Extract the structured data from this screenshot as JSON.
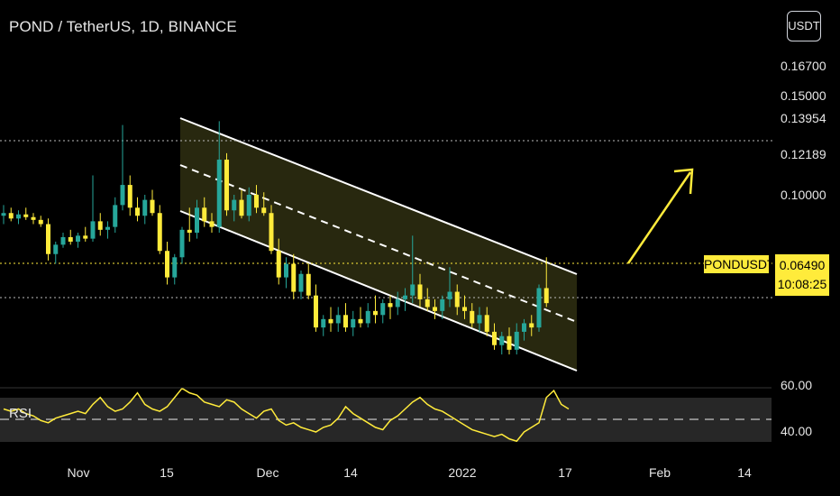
{
  "header": {
    "title": "POND / TetherUS, 1D, BINANCE"
  },
  "toolbar": {
    "currency_label": "USDT"
  },
  "price_badge": {
    "symbol": "PONDUSDT",
    "price": "0.06490",
    "countdown": "10:08:25"
  },
  "rsi": {
    "label": "RSI"
  },
  "colors": {
    "up": "#26a69a",
    "down": "#ffeb3b",
    "channel_fill": "#2a2a10",
    "rsi_line": "#ffeb3b"
  },
  "chart_data": [
    {
      "type": "candlestick",
      "title": "POND / TetherUS, 1D, BINANCE",
      "x_ticks": [
        "Nov",
        "15",
        "Dec",
        "14",
        "2022",
        "17",
        "Feb",
        "14"
      ],
      "y_ticks": [
        "0.16700",
        "0.15000",
        "0.13954",
        "0.12189",
        "0.10000"
      ],
      "y_scale": "log",
      "last_price": 0.0649,
      "series": [
        {
          "values": [
            [
              0.092,
              0.096,
              0.089,
              0.093
            ],
            [
              0.093,
              0.095,
              0.09,
              0.091
            ],
            [
              0.091,
              0.094,
              0.089,
              0.0925
            ],
            [
              0.0925,
              0.095,
              0.0905,
              0.0915
            ],
            [
              0.0915,
              0.093,
              0.089,
              0.0905
            ],
            [
              0.0905,
              0.092,
              0.088,
              0.089
            ],
            [
              0.089,
              0.091,
              0.077,
              0.079
            ],
            [
              0.079,
              0.083,
              0.076,
              0.082
            ],
            [
              0.082,
              0.086,
              0.081,
              0.0845
            ],
            [
              0.0845,
              0.087,
              0.082,
              0.083
            ],
            [
              0.083,
              0.086,
              0.081,
              0.085
            ],
            [
              0.085,
              0.088,
              0.083,
              0.084
            ],
            [
              0.084,
              0.108,
              0.083,
              0.09
            ],
            [
              0.09,
              0.093,
              0.085,
              0.087
            ],
            [
              0.087,
              0.09,
              0.084,
              0.088
            ],
            [
              0.088,
              0.099,
              0.086,
              0.096
            ],
            [
              0.096,
              0.132,
              0.094,
              0.104
            ],
            [
              0.104,
              0.108,
              0.092,
              0.095
            ],
            [
              0.095,
              0.099,
              0.09,
              0.092
            ],
            [
              0.092,
              0.1,
              0.089,
              0.098
            ],
            [
              0.098,
              0.102,
              0.092,
              0.093
            ],
            [
              0.093,
              0.096,
              0.079,
              0.08
            ],
            [
              0.08,
              0.083,
              0.07,
              0.072
            ],
            [
              0.072,
              0.079,
              0.07,
              0.078
            ],
            [
              0.078,
              0.088,
              0.076,
              0.087
            ],
            [
              0.087,
              0.095,
              0.083,
              0.086
            ],
            [
              0.086,
              0.098,
              0.084,
              0.095
            ],
            [
              0.095,
              0.099,
              0.088,
              0.09
            ],
            [
              0.09,
              0.093,
              0.086,
              0.088
            ],
            [
              0.088,
              0.134,
              0.086,
              0.115
            ],
            [
              0.115,
              0.118,
              0.092,
              0.094
            ],
            [
              0.094,
              0.1,
              0.09,
              0.098
            ],
            [
              0.098,
              0.102,
              0.091,
              0.092
            ],
            [
              0.092,
              0.103,
              0.09,
              0.1
            ],
            [
              0.1,
              0.104,
              0.093,
              0.095
            ],
            [
              0.095,
              0.101,
              0.092,
              0.093
            ],
            [
              0.093,
              0.096,
              0.079,
              0.08
            ],
            [
              0.08,
              0.084,
              0.07,
              0.072
            ],
            [
              0.072,
              0.078,
              0.069,
              0.076
            ],
            [
              0.076,
              0.079,
              0.066,
              0.068
            ],
            [
              0.068,
              0.074,
              0.066,
              0.073
            ],
            [
              0.073,
              0.076,
              0.066,
              0.067
            ],
            [
              0.067,
              0.07,
              0.058,
              0.059
            ],
            [
              0.059,
              0.062,
              0.057,
              0.061
            ],
            [
              0.061,
              0.064,
              0.058,
              0.06
            ],
            [
              0.06,
              0.064,
              0.058,
              0.062
            ],
            [
              0.062,
              0.065,
              0.058,
              0.059
            ],
            [
              0.059,
              0.063,
              0.057,
              0.061
            ],
            [
              0.061,
              0.064,
              0.059,
              0.06
            ],
            [
              0.06,
              0.065,
              0.059,
              0.063
            ],
            [
              0.063,
              0.067,
              0.06,
              0.062
            ],
            [
              0.062,
              0.066,
              0.06,
              0.065
            ],
            [
              0.065,
              0.067,
              0.061,
              0.064
            ],
            [
              0.064,
              0.068,
              0.062,
              0.066
            ],
            [
              0.066,
              0.069,
              0.063,
              0.067
            ],
            [
              0.067,
              0.085,
              0.065,
              0.07
            ],
            [
              0.07,
              0.073,
              0.064,
              0.066
            ],
            [
              0.066,
              0.069,
              0.063,
              0.064
            ],
            [
              0.064,
              0.066,
              0.061,
              0.063
            ],
            [
              0.063,
              0.067,
              0.061,
              0.066
            ],
            [
              0.066,
              0.075,
              0.064,
              0.068
            ],
            [
              0.068,
              0.07,
              0.062,
              0.064
            ],
            [
              0.064,
              0.067,
              0.061,
              0.063
            ],
            [
              0.063,
              0.065,
              0.059,
              0.06
            ],
            [
              0.06,
              0.064,
              0.058,
              0.062
            ],
            [
              0.062,
              0.064,
              0.057,
              0.058
            ],
            [
              0.058,
              0.06,
              0.054,
              0.055
            ],
            [
              0.055,
              0.058,
              0.053,
              0.057
            ],
            [
              0.057,
              0.059,
              0.053,
              0.054
            ],
            [
              0.054,
              0.06,
              0.053,
              0.058
            ],
            [
              0.058,
              0.061,
              0.056,
              0.06
            ],
            [
              0.06,
              0.062,
              0.057,
              0.059
            ],
            [
              0.059,
              0.07,
              0.058,
              0.069
            ],
            [
              0.069,
              0.078,
              0.064,
              0.065
            ]
          ]
        }
      ],
      "annotations": [
        "descending channel",
        "arrow up-right"
      ]
    },
    {
      "type": "line",
      "title": "RSI",
      "y_ticks": [
        "60.00",
        "40.00"
      ],
      "series": [
        {
          "values": [
            50,
            49,
            50,
            48,
            47,
            45,
            44,
            46,
            47,
            48,
            49,
            48,
            52,
            55,
            51,
            49,
            50,
            53,
            57,
            52,
            50,
            49,
            51,
            55,
            59,
            57,
            56,
            53,
            52,
            51,
            54,
            53,
            50,
            48,
            46,
            49,
            50,
            45,
            43,
            44,
            42,
            41,
            40,
            42,
            43,
            46,
            51,
            48,
            46,
            44,
            42,
            41,
            45,
            47,
            50,
            53,
            55,
            52,
            50,
            49,
            47,
            45,
            43,
            41,
            40,
            39,
            38,
            39,
            37,
            36,
            40,
            42,
            44,
            55,
            58,
            52,
            50
          ]
        }
      ]
    }
  ]
}
